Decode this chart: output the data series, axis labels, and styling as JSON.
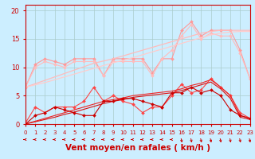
{
  "xlabel": "Vent moyen/en rafales ( km/h )",
  "xlim": [
    0,
    23
  ],
  "ylim": [
    0,
    21
  ],
  "background_color": "#cceeff",
  "grid_color": "#aacccc",
  "x": [
    0,
    1,
    2,
    3,
    4,
    5,
    6,
    7,
    8,
    9,
    10,
    11,
    12,
    13,
    14,
    15,
    16,
    17,
    18,
    19,
    20,
    21,
    22,
    23
  ],
  "series": [
    {
      "name": "pink_marker1",
      "color": "#ff9999",
      "linewidth": 0.8,
      "marker": "D",
      "markersize": 2.0,
      "y": [
        6.5,
        10.5,
        11.5,
        11.0,
        10.5,
        11.5,
        11.5,
        11.5,
        8.5,
        11.5,
        11.5,
        11.5,
        11.5,
        9.0,
        11.5,
        11.5,
        16.5,
        18.0,
        15.5,
        16.5,
        16.5,
        16.5,
        13.0,
        8.0
      ]
    },
    {
      "name": "pink_marker2",
      "color": "#ffbbbb",
      "linewidth": 0.8,
      "marker": "D",
      "markersize": 2.0,
      "y": [
        6.5,
        10.0,
        11.0,
        10.5,
        10.0,
        11.0,
        11.0,
        11.0,
        8.5,
        11.0,
        11.0,
        11.0,
        11.0,
        8.5,
        11.5,
        13.0,
        15.5,
        17.5,
        15.0,
        16.0,
        15.5,
        15.5,
        12.5,
        8.0
      ]
    },
    {
      "name": "pink_trend_upper",
      "color": "#ffbbbb",
      "linewidth": 0.9,
      "marker": null,
      "y": [
        6.5,
        7.1,
        7.7,
        8.3,
        8.9,
        9.5,
        10.1,
        10.7,
        11.1,
        11.5,
        12.0,
        12.5,
        13.0,
        13.5,
        14.0,
        14.5,
        15.0,
        15.5,
        16.0,
        16.3,
        16.5,
        16.5,
        16.5,
        16.5
      ]
    },
    {
      "name": "pink_trend_lower",
      "color": "#ffcccc",
      "linewidth": 0.9,
      "marker": null,
      "y": [
        6.5,
        6.9,
        7.3,
        7.8,
        8.3,
        8.8,
        9.3,
        9.8,
        10.3,
        10.8,
        11.2,
        11.7,
        12.2,
        12.7,
        13.2,
        13.7,
        14.2,
        14.7,
        15.2,
        15.7,
        16.0,
        16.2,
        16.3,
        16.3
      ]
    },
    {
      "name": "red_marker",
      "color": "#ff4444",
      "linewidth": 0.8,
      "marker": "D",
      "markersize": 2.0,
      "y": [
        0.2,
        3.0,
        2.0,
        3.0,
        3.0,
        3.0,
        4.0,
        6.5,
        4.0,
        5.0,
        4.0,
        3.5,
        2.0,
        3.0,
        3.0,
        5.0,
        7.0,
        5.5,
        6.0,
        8.0,
        6.5,
        5.0,
        2.0,
        1.0
      ]
    },
    {
      "name": "red_trend1",
      "color": "#ee2222",
      "linewidth": 0.8,
      "marker": null,
      "y": [
        0.0,
        0.5,
        1.0,
        1.5,
        2.0,
        2.5,
        3.0,
        3.5,
        4.0,
        4.3,
        4.6,
        5.0,
        5.2,
        5.4,
        5.6,
        5.8,
        6.2,
        6.8,
        7.2,
        7.8,
        6.5,
        5.0,
        1.5,
        1.0
      ]
    },
    {
      "name": "red_trend2",
      "color": "#dd1111",
      "linewidth": 0.8,
      "marker": null,
      "y": [
        0.0,
        0.4,
        0.8,
        1.2,
        1.7,
        2.1,
        2.6,
        3.1,
        3.6,
        4.0,
        4.3,
        4.7,
        4.9,
        5.1,
        5.3,
        5.5,
        5.9,
        6.4,
        6.9,
        7.4,
        6.2,
        4.5,
        1.2,
        0.8
      ]
    },
    {
      "name": "darkred_marker",
      "color": "#cc0000",
      "linewidth": 0.8,
      "marker": "D",
      "markersize": 2.0,
      "y": [
        0.0,
        1.5,
        2.0,
        3.0,
        2.5,
        2.0,
        1.5,
        1.5,
        4.0,
        4.0,
        4.5,
        4.5,
        4.0,
        3.5,
        3.0,
        5.5,
        5.5,
        6.5,
        5.5,
        6.0,
        5.0,
        2.5,
        1.5,
        1.0
      ]
    }
  ],
  "arrows_left": {
    "y_data": -1.2,
    "color": "#cc0000",
    "x_values": [
      0,
      1,
      2,
      3,
      4,
      5,
      6,
      7,
      8,
      9,
      10,
      11,
      12,
      13,
      14,
      15
    ]
  },
  "arrows_right": {
    "y_data": -1.2,
    "color": "#cc0000",
    "x_values": [
      16,
      17,
      18,
      19,
      20,
      21,
      22,
      23
    ]
  },
  "tick_color": "#cc0000",
  "xlabel_color": "#cc0000",
  "xlabel_fontsize": 7.5,
  "ytick_values": [
    0,
    5,
    10,
    15,
    20
  ],
  "xtick_values": [
    0,
    1,
    2,
    3,
    4,
    5,
    6,
    7,
    8,
    9,
    10,
    11,
    12,
    13,
    14,
    15,
    16,
    17,
    18,
    19,
    20,
    21,
    22,
    23
  ]
}
